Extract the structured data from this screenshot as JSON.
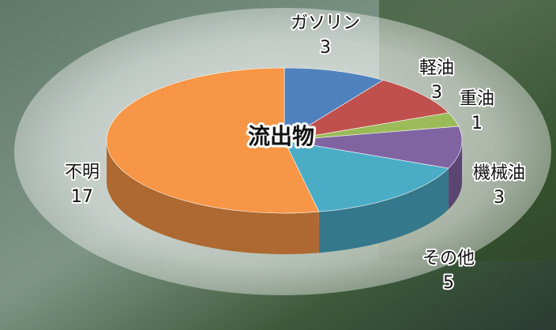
{
  "chart_data": {
    "type": "pie",
    "title": "流出物",
    "categories": [
      "ガソリン",
      "軽油",
      "重油",
      "機械油",
      "その他",
      "不明"
    ],
    "values": [
      3,
      3,
      1,
      3,
      5,
      17
    ],
    "colors": [
      "#4f81bd",
      "#c0504d",
      "#9bbb59",
      "#8064a2",
      "#4bacc6",
      "#f79646"
    ]
  }
}
